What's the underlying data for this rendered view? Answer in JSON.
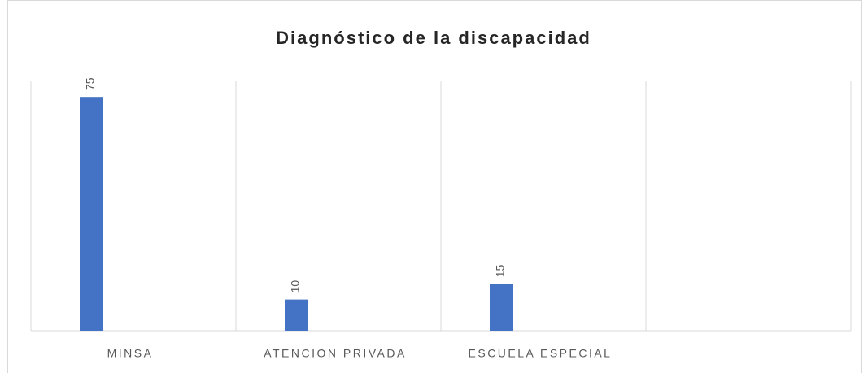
{
  "chart_data": {
    "type": "bar",
    "title": "Diagnóstico de la discapacidad",
    "categories": [
      "MINSA",
      "ATENCION PRIVADA",
      "ESCUELA ESPECIAL",
      null
    ],
    "values": [
      75,
      10,
      15,
      null
    ],
    "color": "#4472c4",
    "ylim": [
      0,
      80
    ],
    "grid": true,
    "data_labels": true
  }
}
